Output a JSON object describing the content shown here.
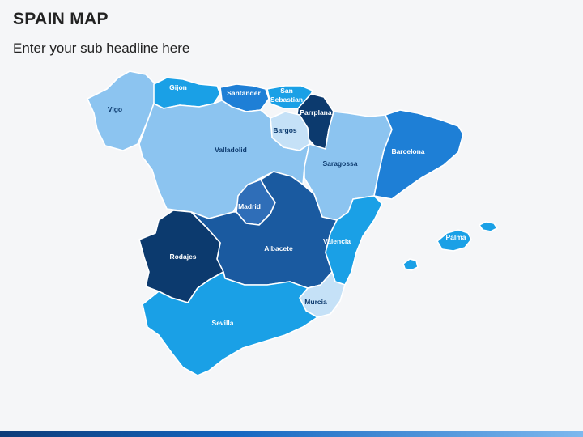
{
  "header": {
    "title": "SPAIN MAP",
    "subtitle": "Enter your sub headline here"
  },
  "colors": {
    "background": "#f5f6f8",
    "light_blue": "#8cc4f0",
    "pale_blue": "#c5e1f7",
    "sky_blue": "#1aa0e6",
    "medium_blue": "#1e7fd6",
    "steel_blue": "#2f6eb8",
    "dark_blue": "#0c3a6e",
    "label_light": "#ffffff",
    "label_dark": "#0c3a6e"
  },
  "regions": [
    {
      "id": "vigo",
      "label": "Vigo",
      "fill": "#8cc4f0"
    },
    {
      "id": "gijon",
      "label": "Gijon",
      "fill": "#1aa0e6"
    },
    {
      "id": "santander",
      "label": "Santander",
      "fill": "#1e7fd6"
    },
    {
      "id": "san-sebastian",
      "label": "San\nSebastian",
      "fill": "#1aa0e6"
    },
    {
      "id": "parrplana",
      "label": "Parrplana",
      "fill": "#0c3a6e"
    },
    {
      "id": "bargos",
      "label": "Bargos",
      "fill": "#c5e1f7"
    },
    {
      "id": "valladolid",
      "label": "Valladolid",
      "fill": "#8cc4f0"
    },
    {
      "id": "saragossa",
      "label": "Saragossa",
      "fill": "#8cc4f0"
    },
    {
      "id": "barcelona",
      "label": "Barcelona",
      "fill": "#1e7fd6"
    },
    {
      "id": "madrid",
      "label": "Madrid",
      "fill": "#2f6eb8"
    },
    {
      "id": "albacete",
      "label": "Albacete",
      "fill": "#1a5aa0"
    },
    {
      "id": "rodajes",
      "label": "Rodajes",
      "fill": "#0c3a6e"
    },
    {
      "id": "valencia",
      "label": "Valencia",
      "fill": "#1aa0e6"
    },
    {
      "id": "murcia",
      "label": "Murcia",
      "fill": "#c5e1f7"
    },
    {
      "id": "sevilla",
      "label": "Sevilla",
      "fill": "#1aa0e6"
    },
    {
      "id": "palma",
      "label": "Palma",
      "fill": "#1aa0e6"
    }
  ]
}
